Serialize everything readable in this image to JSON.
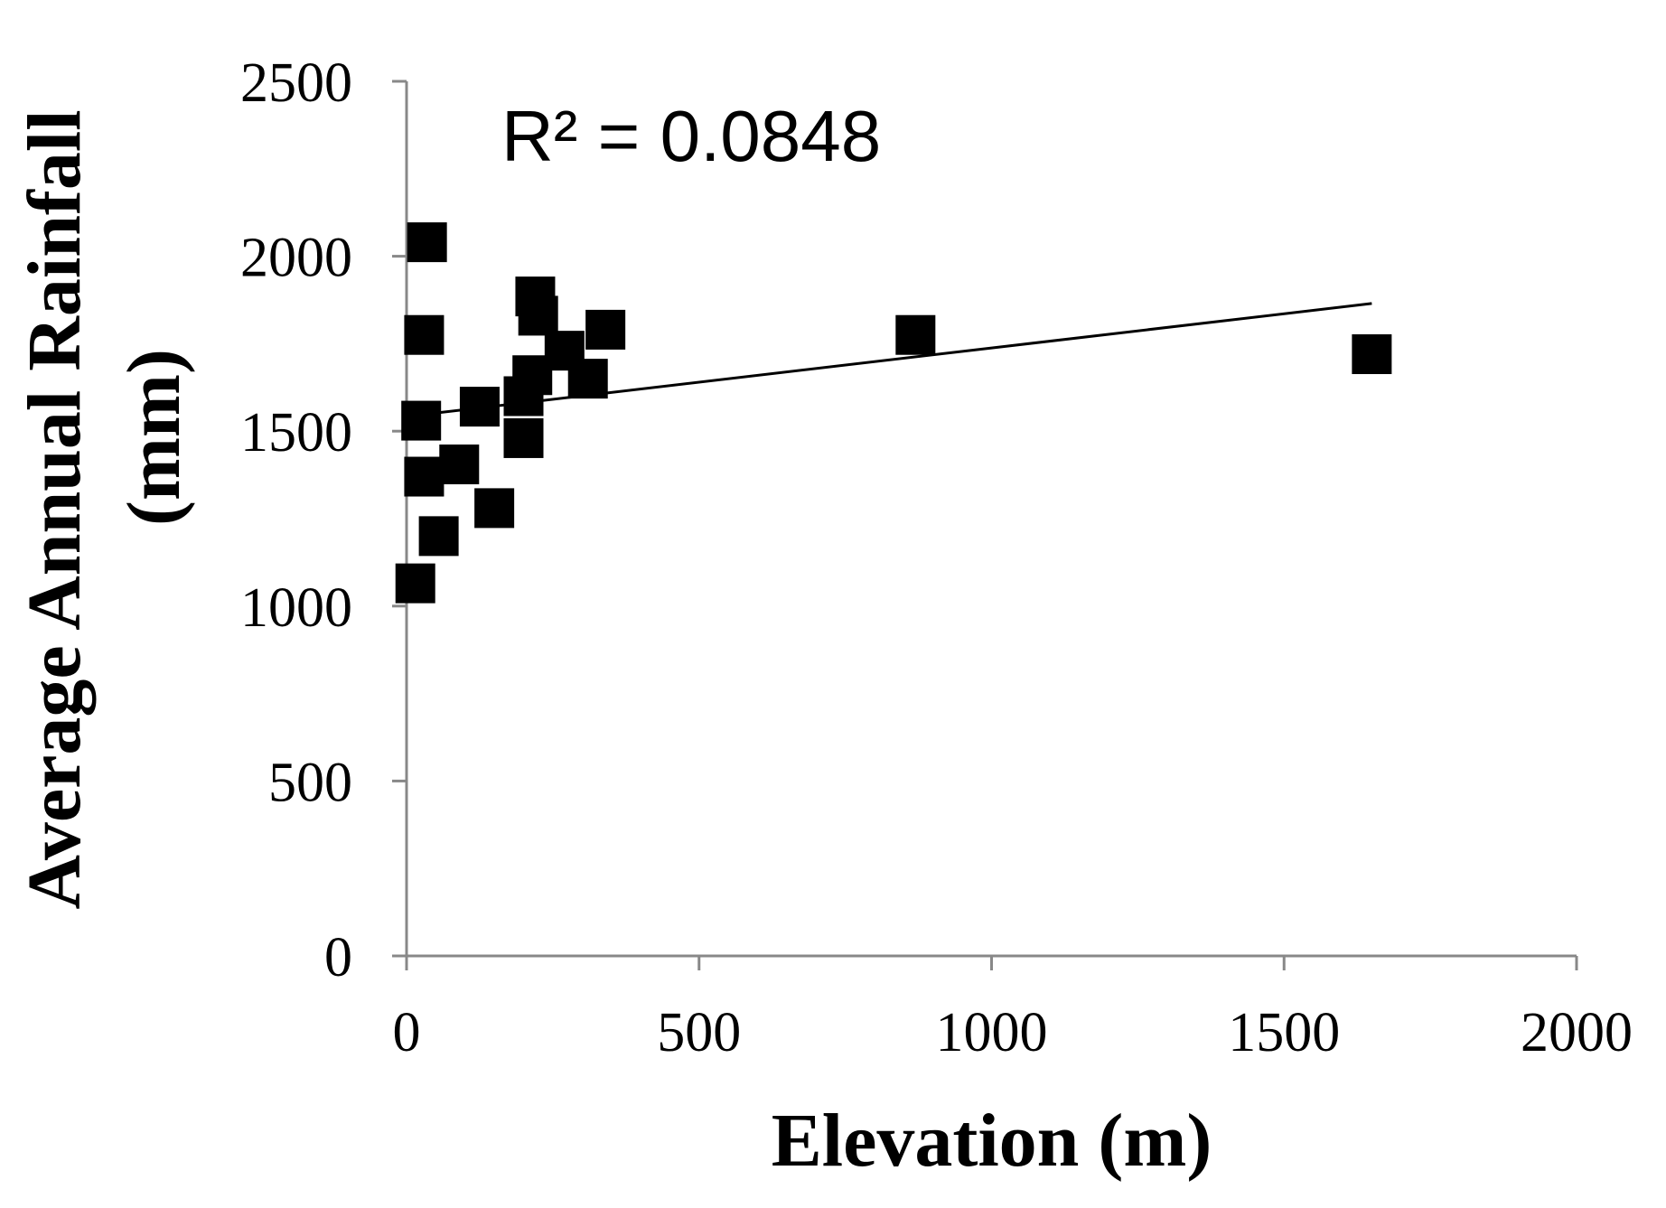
{
  "chart_data": {
    "type": "scatter",
    "xlabel": "Elevation (m)",
    "ylabel_line1": "Average Annual Rainfall",
    "ylabel_line2": "(mm)",
    "xlim": [
      0,
      2000
    ],
    "ylim": [
      0,
      2500
    ],
    "x_ticks": [
      "0",
      "500",
      "1000",
      "1500",
      "2000"
    ],
    "y_ticks": [
      "0",
      "500",
      "1000",
      "1500",
      "2000",
      "2500"
    ],
    "grid": false,
    "legend": "none",
    "marker": "square",
    "marker_color": "#000000",
    "annotation": "R² = 0.0848",
    "points": [
      {
        "x": 35,
        "y": 2040
      },
      {
        "x": 30,
        "y": 1775
      },
      {
        "x": 25,
        "y": 1530
      },
      {
        "x": 30,
        "y": 1370
      },
      {
        "x": 15,
        "y": 1065
      },
      {
        "x": 55,
        "y": 1200
      },
      {
        "x": 90,
        "y": 1405
      },
      {
        "x": 125,
        "y": 1570
      },
      {
        "x": 150,
        "y": 1280
      },
      {
        "x": 200,
        "y": 1480
      },
      {
        "x": 200,
        "y": 1600
      },
      {
        "x": 215,
        "y": 1660
      },
      {
        "x": 220,
        "y": 1885
      },
      {
        "x": 225,
        "y": 1830
      },
      {
        "x": 270,
        "y": 1730
      },
      {
        "x": 310,
        "y": 1650
      },
      {
        "x": 340,
        "y": 1790
      },
      {
        "x": 870,
        "y": 1775
      },
      {
        "x": 1650,
        "y": 1720
      }
    ],
    "trendline": {
      "x": [
        15,
        1650
      ],
      "y": [
        1545,
        1865
      ]
    }
  }
}
